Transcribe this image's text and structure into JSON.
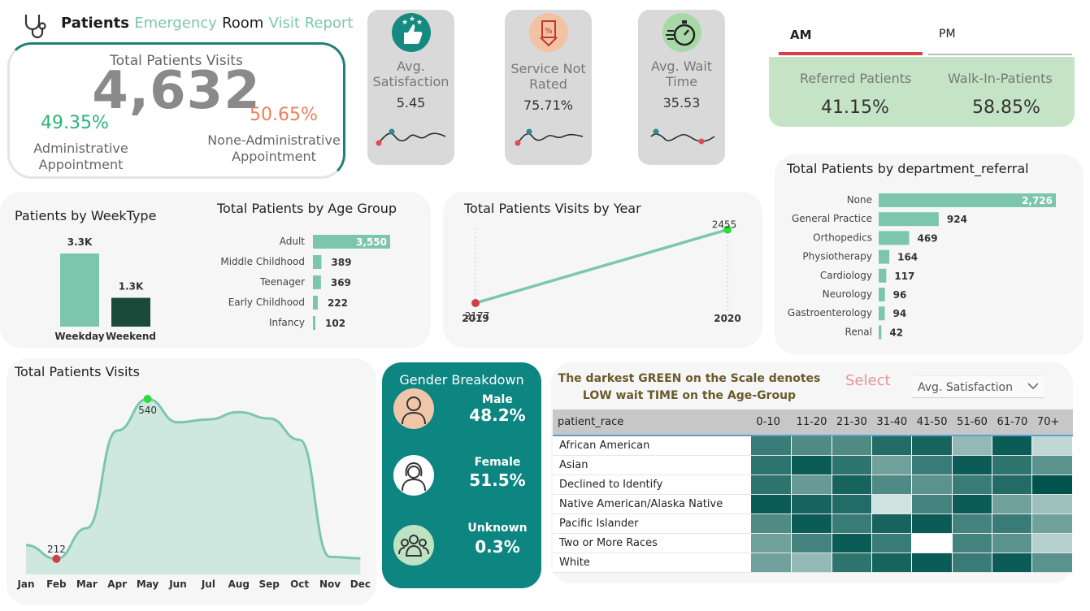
{
  "header": {
    "w1": "Patients",
    "w2": "Emergency",
    "w3": "Room",
    "w4": "Visit Report"
  },
  "total": {
    "label": "Total Patients Visits",
    "value": "4,632",
    "adm_pct": "49.35%",
    "adm_label1": "Administrative",
    "adm_label2": "Appointment",
    "nadm_pct": "50.65%",
    "nadm_label1": "None-Administrative",
    "nadm_label2": "Appointment"
  },
  "kpis": [
    {
      "label1": "Avg.",
      "label2": "Satisfaction",
      "value": "5.45",
      "icon": "thumbs-up-stars-icon",
      "icon_color": "#148a80",
      "ring": "#1a7a73"
    },
    {
      "label1": "Service Not",
      "label2": "Rated",
      "value": "75.71%",
      "icon": "discount-arrows-icon",
      "icon_color": "#f2c2a5",
      "ring": "#e07b54"
    },
    {
      "label1": "Avg. Wait",
      "label2": "Time",
      "value": "35.53",
      "icon": "stopwatch-icon",
      "icon_color": "#a7d9a6",
      "ring": "#2a2a2a"
    }
  ],
  "tabs": {
    "am": "AM",
    "pm": "PM"
  },
  "referral": {
    "ref_label": "Referred Patients",
    "ref_value": "41.15%",
    "walk_label": "Walk-In-Patients",
    "walk_value": "58.85%"
  },
  "dept": {
    "title": "Total Patients by department_referral"
  },
  "week": {
    "title": "Patients by WeekType"
  },
  "age": {
    "title": "Total Patients by Age Group"
  },
  "year": {
    "title": "Total Patients Visits by Year"
  },
  "month": {
    "title": "Total Patients Visits"
  },
  "gender": {
    "title": "Gender Breakdown",
    "male_label": "Male",
    "male_value": "48.2%",
    "female_label": "Female",
    "female_value": "51.5%",
    "unknown_label": "Unknown",
    "unknown_value": "0.3%",
    "colors": {
      "male": "#f1c6a8",
      "female": "#ffffff",
      "unknown": "#bfe3c2"
    }
  },
  "heatmap": {
    "note1": "The darkest GREEN on the Scale denotes",
    "note2": "LOW wait TIME on the Age-Group",
    "select_label": "Select",
    "dropdown_value": "Avg. Satisfaction",
    "header": "patient_race"
  },
  "chart_data": [
    {
      "type": "bar",
      "id": "weektype",
      "title": "Patients by WeekType",
      "categories": [
        "Weekday",
        "Weekend"
      ],
      "values": [
        3300,
        1300
      ],
      "labels": [
        "3.3K",
        "1.3K"
      ],
      "colors": [
        "#7cc6ae",
        "#1a4a3a"
      ]
    },
    {
      "type": "bar",
      "id": "age",
      "title": "Total Patients by Age Group",
      "orientation": "horizontal",
      "categories": [
        "Adult",
        "Middle Childhood",
        "Teenager",
        "Early Childhood",
        "Infancy"
      ],
      "values": [
        3550,
        389,
        369,
        222,
        102
      ],
      "labels": [
        "3,550",
        "389",
        "369",
        "222",
        "102"
      ]
    },
    {
      "type": "line",
      "id": "year",
      "title": "Total Patients Visits by Year",
      "x": [
        "2019",
        "2020"
      ],
      "values": [
        2177,
        2455
      ]
    },
    {
      "type": "bar",
      "id": "dept",
      "title": "Total Patients by department_referral",
      "orientation": "horizontal",
      "categories": [
        "None",
        "General Practice",
        "Orthopedics",
        "Physiotherapy",
        "Cardiology",
        "Neurology",
        "Gastroenterology",
        "Renal"
      ],
      "values": [
        2726,
        924,
        469,
        164,
        117,
        96,
        94,
        42
      ],
      "labels": [
        "2,726",
        "924",
        "469",
        "164",
        "117",
        "96",
        "94",
        "42"
      ]
    },
    {
      "type": "area",
      "id": "monthly",
      "title": "Total Patients Visits",
      "x": [
        "Jan",
        "Feb",
        "Mar",
        "Apr",
        "May",
        "Jun",
        "Jul",
        "Aug",
        "Sep",
        "Oct",
        "Nov",
        "Dec"
      ],
      "values": [
        240,
        212,
        275,
        475,
        540,
        492,
        498,
        513,
        500,
        456,
        216,
        213
      ],
      "min_label": "212",
      "max_label": "540"
    },
    {
      "type": "heatmap",
      "id": "race_age",
      "columns": [
        "0-10",
        "11-20",
        "21-30",
        "31-40",
        "41-50",
        "51-60",
        "61-70",
        "70+"
      ],
      "rows": [
        "African American",
        "Asian",
        "Declined to Identify",
        "Native American/Alaska Native",
        "Pacific Islander",
        "Two or More Races",
        "White"
      ],
      "values": [
        [
          0.75,
          0.65,
          0.65,
          0.85,
          0.9,
          0.35,
          0.95,
          0.15
        ],
        [
          0.8,
          0.95,
          0.8,
          0.5,
          0.75,
          0.95,
          0.8,
          0.6
        ],
        [
          0.8,
          0.55,
          0.9,
          0.65,
          0.6,
          0.75,
          0.85,
          1.0
        ],
        [
          0.95,
          0.9,
          0.85,
          0.08,
          0.7,
          0.95,
          0.5,
          0.3
        ],
        [
          0.65,
          0.95,
          0.75,
          0.9,
          0.95,
          0.7,
          0.75,
          0.5
        ],
        [
          0.5,
          0.7,
          0.95,
          0.75,
          0.0,
          0.7,
          0.6,
          0.2
        ],
        [
          0.5,
          0.35,
          0.8,
          0.9,
          0.95,
          0.75,
          0.95,
          0.6
        ]
      ]
    }
  ]
}
